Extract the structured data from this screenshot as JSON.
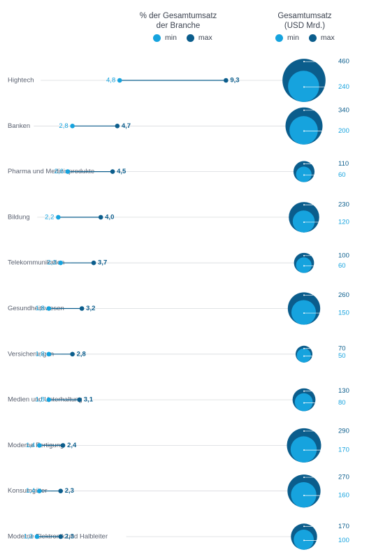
{
  "chart_data": {
    "type": "dot-range + nested bubble",
    "headers": {
      "pct": "% der Gesamtumsatz der Branche",
      "pct_line1": "% der Gesamtumsatz",
      "pct_line2": "der Branche",
      "rev": "Gesamtumsatz (USD Mrd.)",
      "rev_line1": "Gesamtumsatz",
      "rev_line2": "(USD Mrd.)"
    },
    "legend": {
      "min": "min",
      "max": "max"
    },
    "colors": {
      "min": "#16a3de",
      "max": "#0b5d8c",
      "text": "#5a6170",
      "gridline": "#d7dade"
    },
    "pct_axis_range": [
      0,
      10
    ],
    "categories": [
      "Hightech",
      "Banken",
      "Pharma und Medizinprodukte",
      "Bildung",
      "Telekommunikation",
      "Gesundheitswesen",
      "Versicherungen",
      "Medien und Unterhaltung",
      "Moderne Fertigung",
      "Konsumgüter",
      "Moderne Elektronik und Halbleiter"
    ],
    "series_pct": [
      {
        "name": "min",
        "values": [
          4.8,
          2.8,
          2.6,
          2.2,
          2.3,
          1.8,
          1.8,
          1.8,
          1.4,
          1.4,
          1.3
        ],
        "labels": [
          "4,8",
          "2,8",
          "2,6",
          "2,2",
          "2,3",
          "1,8",
          "1,8",
          "1,8",
          "1,4",
          "1,4",
          "1,3"
        ]
      },
      {
        "name": "max",
        "values": [
          9.3,
          4.7,
          4.5,
          4.0,
          3.7,
          3.2,
          2.8,
          3.1,
          2.4,
          2.3,
          2.3
        ],
        "labels": [
          "9,3",
          "4,7",
          "4,5",
          "4,0",
          "3,7",
          "3,2",
          "2,8",
          "3,1",
          "2,4",
          "2,3",
          "2,3"
        ]
      }
    ],
    "series_revenue": [
      {
        "name": "min",
        "values": [
          240,
          200,
          60,
          120,
          60,
          150,
          50,
          80,
          170,
          160,
          100
        ],
        "labels": [
          "240",
          "200",
          "60",
          "120",
          "60",
          "150",
          "50",
          "80",
          "170",
          "160",
          "100"
        ]
      },
      {
        "name": "max",
        "values": [
          460,
          340,
          110,
          230,
          100,
          260,
          70,
          130,
          290,
          270,
          170
        ],
        "labels": [
          "460",
          "340",
          "110",
          "230",
          "100",
          "260",
          "70",
          "130",
          "290",
          "270",
          "170"
        ]
      }
    ]
  }
}
